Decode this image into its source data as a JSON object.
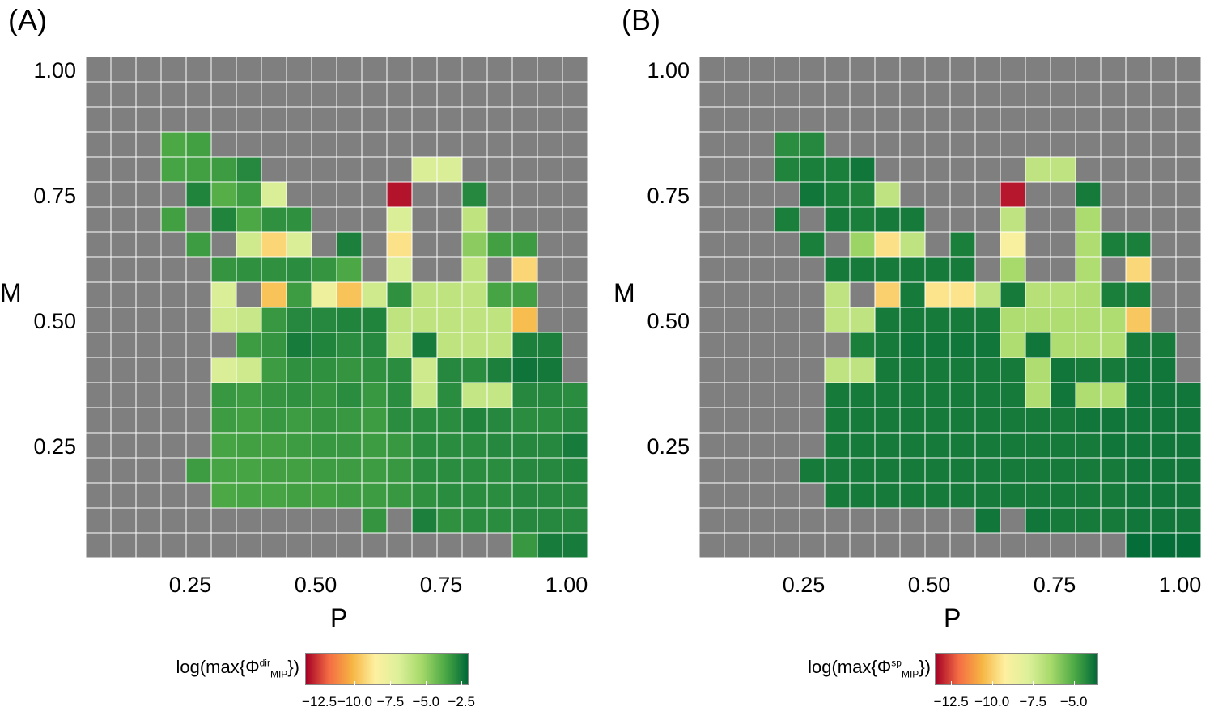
{
  "panels": [
    {
      "label": "(A)",
      "xlabel": "P",
      "ylabel": "M",
      "xticks": [
        "0.25",
        "0.50",
        "0.75",
        "1.00"
      ],
      "yticks": [
        "1.00",
        "0.75",
        "0.50",
        "0.25"
      ],
      "legend": {
        "prefix": "log(max{Φ",
        "sup": "dir",
        "sub": "MIP",
        "suffix": "})",
        "ticks": [
          "−12.5",
          "−10.0",
          "−7.5",
          "−5.0",
          "−2.5"
        ]
      }
    },
    {
      "label": "(B)",
      "xlabel": "P",
      "ylabel": "M",
      "xticks": [
        "0.25",
        "0.50",
        "0.75",
        "1.00"
      ],
      "yticks": [
        "1.00",
        "0.75",
        "0.50",
        "0.25"
      ],
      "legend": {
        "prefix": "log(max{Φ",
        "sup": "sp",
        "sub": "MIP",
        "suffix": "})",
        "ticks": [
          "−12.5",
          "−10.0",
          "−7.5",
          "−5.0"
        ]
      }
    }
  ],
  "chart_data": [
    {
      "type": "heatmap",
      "title": "(A)",
      "xlabel": "P",
      "ylabel": "M",
      "x": [
        0.05,
        0.1,
        0.15,
        0.2,
        0.25,
        0.3,
        0.35,
        0.4,
        0.45,
        0.5,
        0.55,
        0.6,
        0.65,
        0.7,
        0.75,
        0.8,
        0.85,
        0.9,
        0.95,
        1.0
      ],
      "y": [
        1.0,
        0.95,
        0.9,
        0.85,
        0.8,
        0.75,
        0.7,
        0.65,
        0.6,
        0.55,
        0.5,
        0.45,
        0.4,
        0.35,
        0.3,
        0.25,
        0.2,
        0.15,
        0.1,
        0.05
      ],
      "xlim": [
        0.025,
        1.025
      ],
      "ylim": [
        0.025,
        1.025
      ],
      "colorbar_label": "log(max{Φdir MIP})",
      "colorbar_ticks": [
        -12.5,
        -10.0,
        -7.5,
        -5.0,
        -2.5
      ],
      "colorbar_range": [
        -13.5,
        -2.0
      ],
      "missing_color": "#7f7f7f",
      "colorscale": [
        "#a50026",
        "#f46d43",
        "#f6b543",
        "#fdf0a0",
        "#ddf09a",
        "#a6d96a",
        "#4daa45",
        "#006837"
      ],
      "values": [
        [
          null,
          null,
          null,
          null,
          null,
          null,
          null,
          null,
          null,
          null,
          null,
          null,
          null,
          null,
          null,
          null,
          null,
          null,
          null,
          null
        ],
        [
          null,
          null,
          null,
          null,
          null,
          null,
          null,
          null,
          null,
          null,
          null,
          null,
          null,
          null,
          null,
          null,
          null,
          null,
          null,
          null
        ],
        [
          null,
          null,
          null,
          null,
          null,
          null,
          null,
          null,
          null,
          null,
          null,
          null,
          null,
          null,
          null,
          null,
          null,
          null,
          null,
          null
        ],
        [
          null,
          null,
          null,
          -3.6,
          -3.4,
          null,
          null,
          null,
          null,
          null,
          null,
          null,
          null,
          null,
          null,
          null,
          null,
          null,
          null,
          null
        ],
        [
          null,
          null,
          null,
          -3.5,
          -3.4,
          -3.3,
          -2.8,
          null,
          null,
          null,
          null,
          null,
          null,
          -6.8,
          -6.8,
          null,
          null,
          null,
          null,
          null
        ],
        [
          null,
          null,
          null,
          null,
          -2.7,
          -3.8,
          -3.3,
          -6.8,
          null,
          null,
          null,
          null,
          -13.2,
          null,
          null,
          -2.8,
          null,
          null,
          null,
          null
        ],
        [
          null,
          null,
          null,
          -3.4,
          null,
          -2.7,
          -3.6,
          -3.0,
          -3.0,
          null,
          null,
          null,
          -6.8,
          null,
          null,
          -6.0,
          null,
          null,
          null,
          null
        ],
        [
          null,
          null,
          null,
          null,
          -3.3,
          null,
          -6.5,
          -9.3,
          -6.8,
          null,
          -2.6,
          null,
          -9.0,
          null,
          null,
          -4.8,
          -3.4,
          -3.3,
          null,
          null
        ],
        [
          null,
          null,
          null,
          null,
          null,
          -3.1,
          -3.0,
          -3.0,
          -2.9,
          -3.1,
          -3.6,
          null,
          -6.8,
          null,
          null,
          -6.0,
          null,
          -9.3,
          null,
          null
        ],
        [
          null,
          null,
          null,
          null,
          null,
          -6.8,
          null,
          -9.8,
          -3.3,
          -7.8,
          -9.8,
          -6.5,
          -3.0,
          -6.0,
          -6.0,
          -6.0,
          -3.5,
          -3.4,
          null,
          null
        ],
        [
          null,
          null,
          null,
          null,
          null,
          -6.5,
          -6.3,
          -3.2,
          -2.8,
          -2.8,
          -2.7,
          -2.7,
          -6.0,
          -6.0,
          -6.0,
          -6.0,
          -6.0,
          -10.0,
          null,
          null
        ],
        [
          null,
          null,
          null,
          null,
          null,
          null,
          -3.3,
          -3.1,
          -2.5,
          -2.7,
          -2.9,
          -2.8,
          -6.2,
          -2.5,
          -6.0,
          -6.0,
          -6.0,
          -2.6,
          -2.6,
          null
        ],
        [
          null,
          null,
          null,
          null,
          null,
          -6.8,
          -6.5,
          -3.3,
          -3.0,
          -3.0,
          -3.1,
          -3.0,
          -2.9,
          -6.5,
          -2.8,
          -2.9,
          -2.6,
          -2.3,
          -2.4,
          null
        ],
        [
          null,
          null,
          null,
          null,
          null,
          -3.2,
          -3.3,
          -3.1,
          -3.0,
          -3.1,
          -2.9,
          -3.2,
          -2.9,
          -6.2,
          -2.9,
          -6.2,
          -6.2,
          -2.8,
          -2.8,
          -2.9
        ],
        [
          null,
          null,
          null,
          null,
          null,
          -3.3,
          -3.4,
          -3.2,
          -3.3,
          -3.1,
          -3.2,
          -3.3,
          -2.9,
          -2.9,
          -2.9,
          -2.7,
          -2.8,
          -2.9,
          -2.9,
          -2.8
        ],
        [
          null,
          null,
          null,
          null,
          null,
          -3.5,
          -3.4,
          -3.4,
          -3.3,
          -3.2,
          -3.2,
          -3.3,
          -3.2,
          -2.9,
          -2.9,
          -2.9,
          -2.8,
          -2.8,
          -2.8,
          -2.5
        ],
        [
          null,
          null,
          null,
          null,
          -3.3,
          -3.5,
          -3.5,
          -3.4,
          -3.4,
          -3.3,
          -3.3,
          -3.3,
          -3.2,
          -2.9,
          -2.9,
          -2.9,
          -2.9,
          -2.8,
          -2.8,
          -2.7
        ],
        [
          null,
          null,
          null,
          null,
          null,
          -3.6,
          -3.5,
          -3.5,
          -3.4,
          -3.4,
          -3.3,
          -3.3,
          -3.2,
          -3.0,
          -2.9,
          -2.9,
          -2.9,
          -2.8,
          -2.8,
          -2.8
        ],
        [
          null,
          null,
          null,
          null,
          null,
          null,
          null,
          null,
          null,
          null,
          null,
          -3.1,
          null,
          -2.6,
          -3.0,
          -2.9,
          -2.9,
          -2.8,
          -2.8,
          -2.8
        ],
        [
          null,
          null,
          null,
          null,
          null,
          null,
          null,
          null,
          null,
          null,
          null,
          null,
          null,
          null,
          null,
          null,
          null,
          -3.2,
          -2.5,
          -2.5
        ]
      ]
    },
    {
      "type": "heatmap",
      "title": "(B)",
      "xlabel": "P",
      "ylabel": "M",
      "x": [
        0.05,
        0.1,
        0.15,
        0.2,
        0.25,
        0.3,
        0.35,
        0.4,
        0.45,
        0.5,
        0.55,
        0.6,
        0.65,
        0.7,
        0.75,
        0.8,
        0.85,
        0.9,
        0.95,
        1.0
      ],
      "y": [
        1.0,
        0.95,
        0.9,
        0.85,
        0.8,
        0.75,
        0.7,
        0.65,
        0.6,
        0.55,
        0.5,
        0.45,
        0.4,
        0.35,
        0.3,
        0.25,
        0.2,
        0.15,
        0.1,
        0.05
      ],
      "xlim": [
        0.025,
        1.025
      ],
      "ylim": [
        0.025,
        1.025
      ],
      "colorbar_label": "log(max{Φsp MIP})",
      "colorbar_ticks": [
        -12.5,
        -10.0,
        -7.5,
        -5.0
      ],
      "colorbar_range": [
        -13.5,
        -3.5
      ],
      "missing_color": "#7f7f7f",
      "colorscale": [
        "#a50026",
        "#f46d43",
        "#f6b543",
        "#fdf0a0",
        "#ddf09a",
        "#a6d96a",
        "#4daa45",
        "#006837"
      ],
      "values": [
        [
          null,
          null,
          null,
          null,
          null,
          null,
          null,
          null,
          null,
          null,
          null,
          null,
          null,
          null,
          null,
          null,
          null,
          null,
          null,
          null
        ],
        [
          null,
          null,
          null,
          null,
          null,
          null,
          null,
          null,
          null,
          null,
          null,
          null,
          null,
          null,
          null,
          null,
          null,
          null,
          null,
          null
        ],
        [
          null,
          null,
          null,
          null,
          null,
          null,
          null,
          null,
          null,
          null,
          null,
          null,
          null,
          null,
          null,
          null,
          null,
          null,
          null,
          null
        ],
        [
          null,
          null,
          null,
          -4.3,
          -4.2,
          null,
          null,
          null,
          null,
          null,
          null,
          null,
          null,
          null,
          null,
          null,
          null,
          null,
          null,
          null
        ],
        [
          null,
          null,
          null,
          -4.1,
          -4.0,
          -4.0,
          -3.8,
          null,
          null,
          null,
          null,
          null,
          null,
          -7.0,
          -7.0,
          null,
          null,
          null,
          null,
          null
        ],
        [
          null,
          null,
          null,
          null,
          -3.8,
          -4.0,
          -4.1,
          -7.0,
          null,
          null,
          null,
          null,
          -13.2,
          null,
          null,
          -3.9,
          null,
          null,
          null,
          null
        ],
        [
          null,
          null,
          null,
          -4.0,
          null,
          -3.9,
          -4.0,
          -3.9,
          -3.9,
          null,
          null,
          null,
          -7.0,
          null,
          null,
          -6.5,
          null,
          null,
          null,
          null
        ],
        [
          null,
          null,
          null,
          null,
          -4.0,
          null,
          -6.2,
          -9.6,
          -7.0,
          null,
          -4.0,
          null,
          -9.0,
          null,
          null,
          -6.6,
          -4.0,
          -4.0,
          null,
          null
        ],
        [
          null,
          null,
          null,
          null,
          null,
          -3.9,
          -3.9,
          -3.9,
          -3.9,
          -3.9,
          -3.9,
          null,
          -6.4,
          null,
          null,
          -6.6,
          null,
          -9.8,
          null,
          null
        ],
        [
          null,
          null,
          null,
          null,
          null,
          -7.0,
          null,
          -10.0,
          -3.9,
          -9.5,
          -9.5,
          -7.0,
          -3.9,
          -6.8,
          -6.8,
          -6.6,
          -4.0,
          -4.0,
          null,
          null
        ],
        [
          null,
          null,
          null,
          null,
          null,
          -7.0,
          -7.0,
          -3.9,
          -3.9,
          -3.9,
          -3.9,
          -3.9,
          -6.6,
          -6.6,
          -6.6,
          -6.6,
          -6.6,
          -10.2,
          null,
          null
        ],
        [
          null,
          null,
          null,
          null,
          null,
          null,
          -4.0,
          -3.9,
          -3.8,
          -3.8,
          -3.8,
          -3.8,
          -6.6,
          -3.8,
          -6.6,
          -6.6,
          -6.6,
          -3.9,
          -3.9,
          null
        ],
        [
          null,
          null,
          null,
          null,
          null,
          -7.0,
          -7.0,
          -3.9,
          -3.9,
          -3.9,
          -3.9,
          -3.9,
          -3.9,
          -6.6,
          -3.8,
          -3.9,
          -3.9,
          -3.8,
          -3.8,
          null
        ],
        [
          null,
          null,
          null,
          null,
          null,
          -3.9,
          -3.9,
          -3.9,
          -3.9,
          -3.9,
          -3.9,
          -3.9,
          -3.9,
          -6.6,
          -3.8,
          -6.6,
          -6.6,
          -3.8,
          -3.8,
          -3.8
        ],
        [
          null,
          null,
          null,
          null,
          null,
          -3.9,
          -3.9,
          -3.9,
          -3.9,
          -3.9,
          -3.9,
          -3.9,
          -3.9,
          -3.9,
          -3.9,
          -3.8,
          -3.8,
          -3.8,
          -3.8,
          -3.8
        ],
        [
          null,
          null,
          null,
          null,
          null,
          -3.9,
          -3.9,
          -3.9,
          -3.9,
          -3.9,
          -3.9,
          -3.9,
          -3.9,
          -3.9,
          -3.9,
          -3.9,
          -3.8,
          -3.8,
          -3.8,
          -3.8
        ],
        [
          null,
          null,
          null,
          null,
          -3.9,
          -3.9,
          -3.9,
          -3.9,
          -3.9,
          -3.9,
          -3.9,
          -3.9,
          -3.9,
          -3.9,
          -3.9,
          -3.9,
          -3.9,
          -3.8,
          -3.8,
          -3.8
        ],
        [
          null,
          null,
          null,
          null,
          null,
          -3.9,
          -3.9,
          -3.9,
          -3.9,
          -3.9,
          -3.9,
          -3.9,
          -3.9,
          -3.9,
          -3.9,
          -3.9,
          -3.9,
          -3.8,
          -3.8,
          -3.8
        ],
        [
          null,
          null,
          null,
          null,
          null,
          null,
          null,
          null,
          null,
          null,
          null,
          -3.8,
          null,
          -3.8,
          -3.9,
          -3.9,
          -3.9,
          -3.8,
          -3.8,
          -3.8
        ],
        [
          null,
          null,
          null,
          null,
          null,
          null,
          null,
          null,
          null,
          null,
          null,
          null,
          null,
          null,
          null,
          null,
          null,
          -3.6,
          -3.6,
          -3.6
        ]
      ]
    }
  ]
}
